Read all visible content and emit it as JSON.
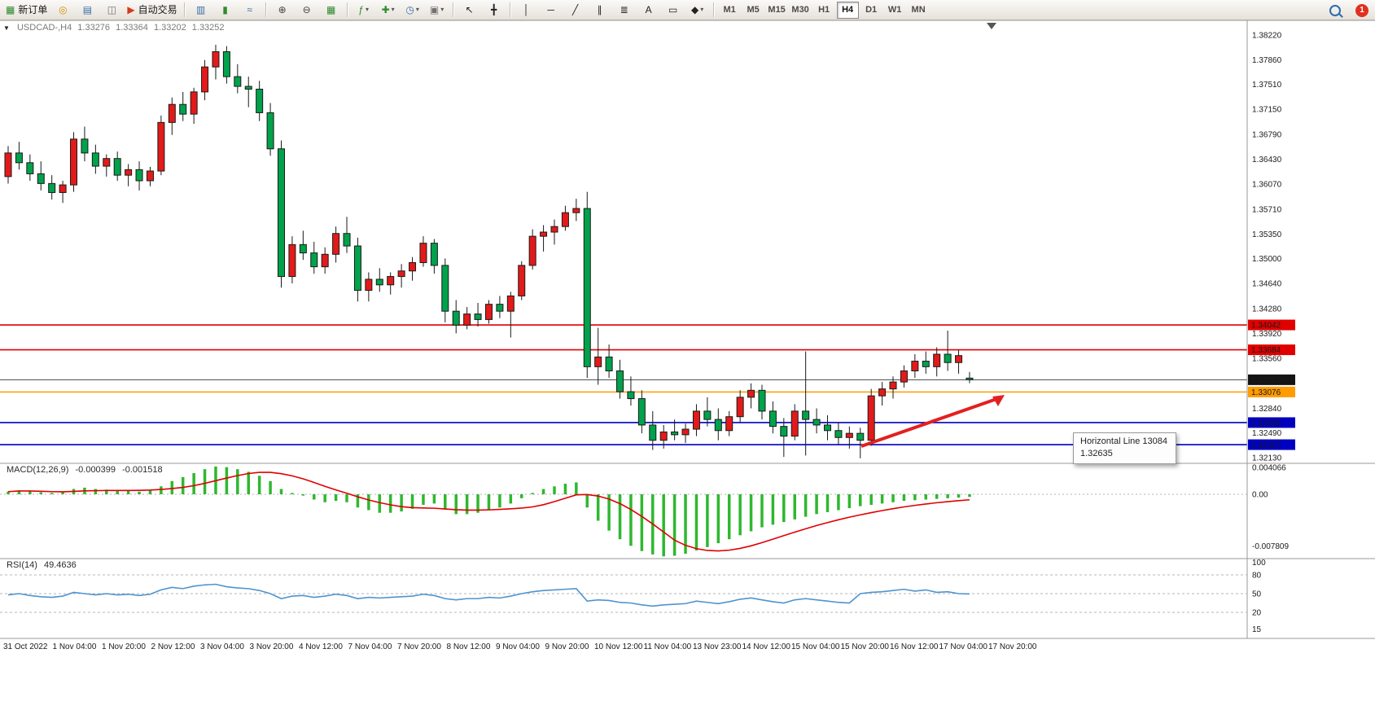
{
  "toolbar": {
    "alert_count": "1",
    "groups": [
      {
        "items": [
          {
            "id": "new-order",
            "glyph": "▦",
            "color": "#2E8B2E",
            "label": "新订单"
          },
          {
            "id": "dartboard",
            "glyph": "◎",
            "color": "#D4900A"
          },
          {
            "id": "market-watch",
            "glyph": "▤",
            "color": "#3A6EA5"
          },
          {
            "id": "data-window",
            "glyph": "◫",
            "color": "#707070"
          },
          {
            "id": "autotrading",
            "glyph": "▶",
            "color": "#D43A1A",
            "label": "自动交易"
          }
        ]
      },
      {
        "items": [
          {
            "id": "bar-chart",
            "glyph": "▥",
            "color": "#3A6EA5"
          },
          {
            "id": "candlestick-chart",
            "glyph": "▮",
            "color": "#2E8B2E"
          },
          {
            "id": "line-chart",
            "glyph": "≈",
            "color": "#3A6EA5"
          }
        ]
      },
      {
        "items": [
          {
            "id": "zoom-in",
            "glyph": "⊕",
            "color": "#444444"
          },
          {
            "id": "zoom-out",
            "glyph": "⊖",
            "color": "#444444"
          },
          {
            "id": "tile-windows",
            "glyph": "▦",
            "color": "#2E8B2E"
          }
        ]
      },
      {
        "items": [
          {
            "id": "indicators",
            "glyph": "ƒ",
            "color": "#2E8B2E",
            "caret": true
          },
          {
            "id": "add-indicator",
            "glyph": "✚",
            "color": "#2E8B2E",
            "caret": true
          },
          {
            "id": "periods",
            "glyph": "◷",
            "color": "#3A6EA5",
            "caret": true
          },
          {
            "id": "templates",
            "glyph": "▣",
            "color": "#707070",
            "caret": true
          }
        ]
      },
      {
        "items": [
          {
            "id": "cursor",
            "glyph": "↖",
            "color": "#222222"
          },
          {
            "id": "crosshair",
            "glyph": "╋",
            "color": "#222222"
          }
        ]
      },
      {
        "items": [
          {
            "id": "vertical-line",
            "glyph": "│",
            "color": "#222222"
          },
          {
            "id": "horizontal-line",
            "glyph": "─",
            "color": "#222222"
          },
          {
            "id": "trendline",
            "glyph": "╱",
            "color": "#222222"
          },
          {
            "id": "channel",
            "glyph": "∥",
            "color": "#222222"
          },
          {
            "id": "fibonacci",
            "glyph": "≣",
            "color": "#222222"
          },
          {
            "id": "text",
            "glyph": "A",
            "color": "#222222"
          },
          {
            "id": "text-label",
            "glyph": "▭",
            "color": "#222222"
          },
          {
            "id": "shapes",
            "glyph": "◆",
            "color": "#222222",
            "caret": true
          }
        ]
      }
    ],
    "timeframes": [
      "M1",
      "M5",
      "M15",
      "M30",
      "H1",
      "H4",
      "D1",
      "W1",
      "MN"
    ],
    "active_timeframe": "H4"
  },
  "chart": {
    "header": {
      "title": "USDCAD-,H4",
      "open": "1.33276",
      "high": "1.33364",
      "low": "1.33202",
      "close": "1.33252"
    },
    "price_axis_ticks": [
      "1.38220",
      "1.37860",
      "1.37510",
      "1.37150",
      "1.36790",
      "1.36430",
      "1.36070",
      "1.35710",
      "1.35350",
      "1.35000",
      "1.34640",
      "1.34280",
      "1.33920",
      "1.33560",
      "1.32840",
      "1.32490",
      "1.32130"
    ],
    "hlines": [
      {
        "price": 1.34042,
        "label": "1.34042",
        "color": "#E00000",
        "label_bg": "#E00000"
      },
      {
        "price": 1.33684,
        "label": "1.33684",
        "color": "#E00000",
        "label_bg": "#E00000"
      },
      {
        "price": 1.33076,
        "label": "1.33076",
        "color": "#FF9C00",
        "label_bg": "#FF9C00"
      },
      {
        "price": 1.32635,
        "label": "1.32635",
        "color": "#0000C0",
        "label_bg": "#0000C0"
      },
      {
        "price": 1.32317,
        "label": "1.32317",
        "color": "#0000C0",
        "label_bg": "#0000C0"
      }
    ],
    "current_price": {
      "price": 1.33252,
      "label": "1.33252",
      "color": "#444444",
      "label_bg": "#141414"
    },
    "tooltip": {
      "line1": "Horizontal Line 13084",
      "line2": "1.32635"
    },
    "trend_arrow": {
      "color": "#E32020"
    }
  },
  "macd": {
    "label": "MACD(12,26,9)",
    "value_main": "-0.000399",
    "value_signal": "-0.001518"
  },
  "rsi": {
    "label": "RSI(14)",
    "value": "49.4636"
  },
  "chart_data": {
    "type": "candlestick",
    "symbol": "USDCAD",
    "timeframe": "H4",
    "up_color": "#E31A1A",
    "down_color": "#00A24B",
    "price_range": [
      1.3213,
      1.3822
    ],
    "candles": [
      [
        1.3618,
        1.3662,
        1.3608,
        1.3652
      ],
      [
        1.3652,
        1.3668,
        1.3628,
        1.3638
      ],
      [
        1.3638,
        1.365,
        1.3612,
        1.3622
      ],
      [
        1.3622,
        1.364,
        1.3598,
        1.3608
      ],
      [
        1.3608,
        1.362,
        1.3585,
        1.3595
      ],
      [
        1.3595,
        1.3612,
        1.358,
        1.3606
      ],
      [
        1.3606,
        1.3682,
        1.3596,
        1.3672
      ],
      [
        1.3672,
        1.369,
        1.364,
        1.3652
      ],
      [
        1.3652,
        1.3664,
        1.3622,
        1.3633
      ],
      [
        1.3633,
        1.365,
        1.3618,
        1.3644
      ],
      [
        1.3644,
        1.3654,
        1.3612,
        1.362
      ],
      [
        1.362,
        1.3636,
        1.3604,
        1.3628
      ],
      [
        1.3628,
        1.364,
        1.3598,
        1.3612
      ],
      [
        1.3612,
        1.3632,
        1.3604,
        1.3626
      ],
      [
        1.3626,
        1.3706,
        1.362,
        1.3696
      ],
      [
        1.3696,
        1.3732,
        1.3678,
        1.3722
      ],
      [
        1.3722,
        1.374,
        1.3698,
        1.3708
      ],
      [
        1.3708,
        1.3746,
        1.3694,
        1.374
      ],
      [
        1.374,
        1.3786,
        1.3728,
        1.3776
      ],
      [
        1.3776,
        1.3808,
        1.3758,
        1.3798
      ],
      [
        1.3798,
        1.3806,
        1.3752,
        1.3762
      ],
      [
        1.3762,
        1.378,
        1.3738,
        1.3748
      ],
      [
        1.3748,
        1.3762,
        1.3718,
        1.3744
      ],
      [
        1.3744,
        1.3756,
        1.3698,
        1.371
      ],
      [
        1.371,
        1.3724,
        1.3648,
        1.3658
      ],
      [
        1.3658,
        1.367,
        1.3458,
        1.3474
      ],
      [
        1.3474,
        1.3532,
        1.3464,
        1.352
      ],
      [
        1.352,
        1.354,
        1.3498,
        1.3508
      ],
      [
        1.3508,
        1.3524,
        1.3478,
        1.3488
      ],
      [
        1.3488,
        1.3516,
        1.3478,
        1.3506
      ],
      [
        1.3506,
        1.3546,
        1.3494,
        1.3536
      ],
      [
        1.3536,
        1.356,
        1.3508,
        1.3518
      ],
      [
        1.3518,
        1.353,
        1.3438,
        1.3454
      ],
      [
        1.3454,
        1.348,
        1.3438,
        1.347
      ],
      [
        1.347,
        1.3486,
        1.3452,
        1.3462
      ],
      [
        1.3462,
        1.348,
        1.3448,
        1.3474
      ],
      [
        1.3474,
        1.3492,
        1.3458,
        1.3482
      ],
      [
        1.3482,
        1.3502,
        1.3468,
        1.3494
      ],
      [
        1.3494,
        1.3532,
        1.3488,
        1.3522
      ],
      [
        1.3522,
        1.3528,
        1.3478,
        1.349
      ],
      [
        1.349,
        1.35,
        1.3408,
        1.3424
      ],
      [
        1.3424,
        1.344,
        1.3392,
        1.3404
      ],
      [
        1.3404,
        1.343,
        1.3398,
        1.342
      ],
      [
        1.342,
        1.3436,
        1.3402,
        1.3412
      ],
      [
        1.3412,
        1.344,
        1.3406,
        1.3434
      ],
      [
        1.3434,
        1.3446,
        1.3414,
        1.3424
      ],
      [
        1.3424,
        1.3452,
        1.3386,
        1.3446
      ],
      [
        1.3446,
        1.3496,
        1.344,
        1.349
      ],
      [
        1.349,
        1.3542,
        1.3484,
        1.3532
      ],
      [
        1.3532,
        1.3548,
        1.351,
        1.3538
      ],
      [
        1.3538,
        1.3556,
        1.352,
        1.3546
      ],
      [
        1.3546,
        1.3576,
        1.354,
        1.3566
      ],
      [
        1.3566,
        1.3586,
        1.3554,
        1.3572
      ],
      [
        1.3572,
        1.3596,
        1.3328,
        1.3344
      ],
      [
        1.3344,
        1.34,
        1.3318,
        1.3358
      ],
      [
        1.3358,
        1.3376,
        1.3328,
        1.3338
      ],
      [
        1.3338,
        1.3354,
        1.3298,
        1.3308
      ],
      [
        1.3308,
        1.333,
        1.3288,
        1.3298
      ],
      [
        1.3298,
        1.331,
        1.3248,
        1.326
      ],
      [
        1.326,
        1.328,
        1.3224,
        1.3238
      ],
      [
        1.3238,
        1.326,
        1.3226,
        1.325
      ],
      [
        1.325,
        1.3268,
        1.3238,
        1.3246
      ],
      [
        1.3246,
        1.3262,
        1.3234,
        1.3254
      ],
      [
        1.3254,
        1.329,
        1.3244,
        1.328
      ],
      [
        1.328,
        1.33,
        1.3258,
        1.3268
      ],
      [
        1.3268,
        1.3284,
        1.3238,
        1.3252
      ],
      [
        1.3252,
        1.328,
        1.3244,
        1.3272
      ],
      [
        1.3272,
        1.331,
        1.3264,
        1.33
      ],
      [
        1.33,
        1.332,
        1.3284,
        1.331
      ],
      [
        1.331,
        1.3318,
        1.3268,
        1.328
      ],
      [
        1.328,
        1.3294,
        1.3248,
        1.3258
      ],
      [
        1.3258,
        1.327,
        1.3214,
        1.3244
      ],
      [
        1.3244,
        1.329,
        1.3238,
        1.328
      ],
      [
        1.328,
        1.3366,
        1.3216,
        1.3268
      ],
      [
        1.3268,
        1.3284,
        1.3248,
        1.326
      ],
      [
        1.326,
        1.3274,
        1.3238,
        1.3252
      ],
      [
        1.3252,
        1.3264,
        1.3232,
        1.3242
      ],
      [
        1.3242,
        1.3258,
        1.3226,
        1.3248
      ],
      [
        1.3248,
        1.3256,
        1.3212,
        1.3238
      ],
      [
        1.3238,
        1.3312,
        1.323,
        1.3302
      ],
      [
        1.3302,
        1.3322,
        1.3288,
        1.3312
      ],
      [
        1.3312,
        1.333,
        1.3298,
        1.3322
      ],
      [
        1.3322,
        1.3346,
        1.3314,
        1.3338
      ],
      [
        1.3338,
        1.3362,
        1.3328,
        1.3352
      ],
      [
        1.3352,
        1.3366,
        1.3334,
        1.3344
      ],
      [
        1.3344,
        1.3372,
        1.333,
        1.3362
      ],
      [
        1.3362,
        1.3396,
        1.3338,
        1.335
      ],
      [
        1.335,
        1.3368,
        1.3334,
        1.336
      ],
      [
        1.33276,
        1.33364,
        1.33202,
        1.33252
      ]
    ],
    "macd": {
      "type": "bar+line",
      "bar_color": "#2EB82E",
      "signal_color": "#E00000",
      "ylabels": [
        "0.004066",
        "0.00",
        "-0.007809"
      ],
      "values": [
        0.0004,
        0.0006,
        0.0005,
        0.0003,
        0.0002,
        0.0003,
        0.0008,
        0.001,
        0.0008,
        0.0007,
        0.0006,
        0.0005,
        0.0004,
        0.0006,
        0.0012,
        0.002,
        0.0026,
        0.0032,
        0.0038,
        0.0042,
        0.0041,
        0.0038,
        0.0034,
        0.0028,
        0.002,
        0.0008,
        0.0002,
        -0.0002,
        -0.0008,
        -0.0012,
        -0.001,
        -0.0012,
        -0.002,
        -0.0024,
        -0.0028,
        -0.0028,
        -0.0026,
        -0.0022,
        -0.0016,
        -0.0014,
        -0.0022,
        -0.003,
        -0.003,
        -0.0028,
        -0.0024,
        -0.002,
        -0.0014,
        -0.0006,
        0.0002,
        0.0008,
        0.0012,
        0.0016,
        0.0018,
        -0.002,
        -0.004,
        -0.0055,
        -0.0068,
        -0.0078,
        -0.0086,
        -0.0091,
        -0.0094,
        -0.0093,
        -0.009,
        -0.0085,
        -0.008,
        -0.0074,
        -0.0068,
        -0.0062,
        -0.0056,
        -0.005,
        -0.0046,
        -0.0042,
        -0.0038,
        -0.0034,
        -0.003,
        -0.0027,
        -0.0024,
        -0.0021,
        -0.0018,
        -0.0016,
        -0.0014,
        -0.0012,
        -0.001,
        -0.0009,
        -0.0008,
        -0.0007,
        -0.0006,
        -0.0005,
        -0.0004
      ]
    },
    "rsi": {
      "type": "line",
      "color": "#4F94CD",
      "levels": [
        80,
        50,
        20
      ],
      "ylabels": [
        "100",
        "80",
        "50",
        "20",
        "15"
      ],
      "values": [
        48,
        50,
        47,
        45,
        44,
        46,
        52,
        50,
        48,
        50,
        48,
        49,
        47,
        49,
        56,
        60,
        58,
        62,
        64,
        65,
        61,
        59,
        58,
        55,
        50,
        42,
        46,
        47,
        44,
        46,
        49,
        47,
        42,
        44,
        43,
        44,
        45,
        46,
        49,
        47,
        42,
        40,
        42,
        42,
        44,
        43,
        46,
        50,
        53,
        55,
        56,
        57,
        58,
        38,
        40,
        39,
        36,
        35,
        32,
        30,
        32,
        33,
        34,
        38,
        36,
        34,
        37,
        41,
        43,
        40,
        37,
        35,
        40,
        42,
        40,
        38,
        36,
        35,
        50,
        52,
        53,
        55,
        57,
        54,
        56,
        52,
        53,
        50,
        49.46
      ]
    },
    "x_labels": [
      "31 Oct 2022",
      "1 Nov 04:00",
      "1 Nov 20:00",
      "2 Nov 12:00",
      "3 Nov 04:00",
      "3 Nov 20:00",
      "4 Nov 12:00",
      "7 Nov 04:00",
      "7 Nov 20:00",
      "8 Nov 12:00",
      "9 Nov 04:00",
      "9 Nov 20:00",
      "10 Nov 12:00",
      "11 Nov 04:00",
      "13 Nov 23:00",
      "14 Nov 12:00",
      "15 Nov 04:00",
      "15 Nov 20:00",
      "16 Nov 12:00",
      "17 Nov 04:00",
      "17 Nov 20:00"
    ]
  }
}
